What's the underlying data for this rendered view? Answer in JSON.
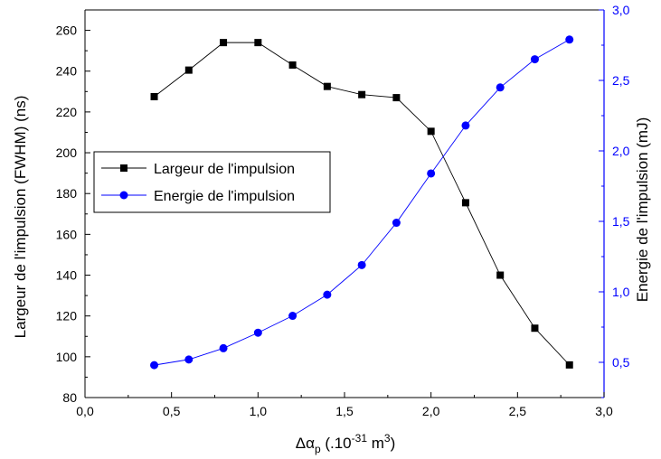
{
  "chart_data": {
    "type": "line",
    "title": "",
    "xlabel": {
      "base": "Δα",
      "sub": "p",
      "mid": " (.10",
      "sup": "-31",
      "unit": " m",
      "unit_sup": "3",
      "end": ")"
    },
    "ylabel_left": "Largeur de l'impulsion (FWHM) (ns)",
    "ylabel_right": "Energie de l'impulsion (mJ)",
    "xlim": [
      0.0,
      3.0
    ],
    "ylim_left": [
      80,
      270
    ],
    "ylim_right": [
      0.25,
      3.0
    ],
    "x_ticks": [
      "0,0",
      "0,5",
      "1,0",
      "1,5",
      "2,0",
      "2,5",
      "3,0"
    ],
    "y_left_ticks": [
      "80",
      "100",
      "120",
      "140",
      "160",
      "180",
      "200",
      "220",
      "240",
      "260"
    ],
    "y_right_ticks": [
      "0,5",
      "1,0",
      "1,5",
      "2,0",
      "2,5",
      "3,0"
    ],
    "legend_position": "upper-left",
    "grid": false,
    "series": [
      {
        "name": "Largeur de l'impulsion",
        "axis": "left",
        "marker": "square",
        "color": "#000000",
        "x": [
          0.4,
          0.6,
          0.8,
          1.0,
          1.2,
          1.4,
          1.6,
          1.8,
          2.0,
          2.2,
          2.4,
          2.6,
          2.8
        ],
        "y": [
          227.5,
          240.5,
          254,
          254,
          243,
          232.5,
          228.5,
          227,
          210.5,
          175.5,
          140,
          114,
          96
        ]
      },
      {
        "name": "Energie de l'impulsion",
        "axis": "right",
        "marker": "circle",
        "color": "#0000ff",
        "x": [
          0.4,
          0.6,
          0.8,
          1.0,
          1.2,
          1.4,
          1.6,
          1.8,
          2.0,
          2.2,
          2.4,
          2.6,
          2.8
        ],
        "y": [
          0.48,
          0.52,
          0.6,
          0.71,
          0.83,
          0.98,
          1.19,
          1.49,
          1.84,
          2.18,
          2.45,
          2.65,
          2.79
        ]
      }
    ]
  }
}
